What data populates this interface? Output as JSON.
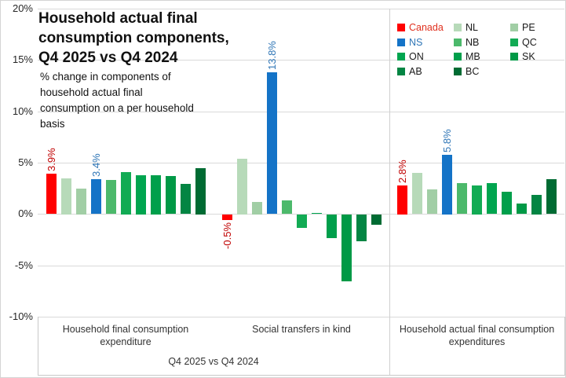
{
  "title": {
    "lines": [
      "Household actual final",
      "consumption components,",
      "Q4 2025 vs Q4 2024"
    ]
  },
  "subtitle": {
    "lines": [
      "% change in components of",
      "household actual final",
      "consumption on a per household",
      "basis"
    ]
  },
  "y_axis": {
    "ticks": [
      "20%",
      "15%",
      "10%",
      "5%",
      "0%",
      "-5%",
      "-10%"
    ]
  },
  "x_axis": {
    "categories": [
      {
        "lines": [
          "Household final consumption",
          "expenditure"
        ]
      },
      {
        "lines": [
          "Social transfers in kind"
        ]
      },
      {
        "lines": [
          "Household actual final consumption",
          "expenditures"
        ]
      }
    ],
    "secondary_label": "Q4 2025 vs Q4 2024"
  },
  "legend": {
    "columns": [
      [
        {
          "label": "Canada",
          "swatch_color": "#ff0000",
          "text_color": "#e0301e"
        },
        {
          "label": "NS",
          "swatch_color": "#1473c7",
          "text_color": "#2e75b6"
        },
        {
          "label": "ON",
          "swatch_color": "#00a54f",
          "text_color": "#1a1a1a"
        },
        {
          "label": "AB",
          "swatch_color": "#038543",
          "text_color": "#1a1a1a"
        }
      ],
      [
        {
          "label": "NL",
          "swatch_color": "#b7dab9",
          "text_color": "#1a1a1a"
        },
        {
          "label": "NB",
          "swatch_color": "#4cb96b",
          "text_color": "#1a1a1a"
        },
        {
          "label": "MB",
          "swatch_color": "#009f4b",
          "text_color": "#1a1a1a"
        },
        {
          "label": "BC",
          "swatch_color": "#006b33",
          "text_color": "#1a1a1a"
        }
      ],
      [
        {
          "label": "PE",
          "swatch_color": "#a1cea5",
          "text_color": "#1a1a1a"
        },
        {
          "label": "QC",
          "swatch_color": "#12ab54",
          "text_color": "#1a1a1a"
        },
        {
          "label": "SK",
          "swatch_color": "#009946",
          "text_color": "#1a1a1a"
        }
      ]
    ]
  },
  "colors": {
    "gridline": "#d9d9d9",
    "box_border": "#c9c9c9",
    "divider": "#cfcfcf"
  },
  "chart_data": {
    "type": "bar",
    "title": "Household actual final consumption components, Q4 2025 vs Q4 2024",
    "subtitle": "% change in components of household actual final consumption on a per household basis",
    "categories": [
      "Household final consumption expenditure",
      "Social transfers in kind",
      "Household actual final consumption expenditures"
    ],
    "secondary_category_label": "Q4 2025 vs Q4 2024",
    "ylim": [
      -10,
      20
    ],
    "ytick_step": 5,
    "unit": "percent change per household",
    "legend_position": "top-right",
    "grid": true,
    "series": [
      {
        "name": "Canada",
        "color": "#ff0000",
        "values": [
          3.9,
          -0.5,
          2.8
        ],
        "data_labels": [
          "3.9%",
          "-0.5%",
          "2.8%"
        ],
        "label_color": "#c00000"
      },
      {
        "name": "NL",
        "color": "#b7dab9",
        "values": [
          3.5,
          5.4,
          4.0
        ]
      },
      {
        "name": "PE",
        "color": "#a1cea5",
        "values": [
          2.5,
          1.2,
          2.4
        ]
      },
      {
        "name": "NS",
        "color": "#1473c7",
        "values": [
          3.4,
          13.8,
          5.8
        ],
        "data_labels": [
          "3.4%",
          "13.8%",
          "5.8%"
        ],
        "label_color": "#2e75b6"
      },
      {
        "name": "NB",
        "color": "#4cb96b",
        "values": [
          3.3,
          1.3,
          3.0
        ]
      },
      {
        "name": "QC",
        "color": "#12ab54",
        "values": [
          4.1,
          -1.3,
          2.8
        ]
      },
      {
        "name": "ON",
        "color": "#00a54f",
        "values": [
          3.8,
          0.1,
          3.0
        ]
      },
      {
        "name": "MB",
        "color": "#009f4b",
        "values": [
          3.8,
          -2.3,
          2.2
        ]
      },
      {
        "name": "SK",
        "color": "#009946",
        "values": [
          3.7,
          -6.5,
          1.0
        ]
      },
      {
        "name": "AB",
        "color": "#038543",
        "values": [
          2.9,
          -2.6,
          1.9
        ]
      },
      {
        "name": "BC",
        "color": "#006b33",
        "values": [
          4.5,
          -1.0,
          3.4
        ]
      }
    ]
  }
}
